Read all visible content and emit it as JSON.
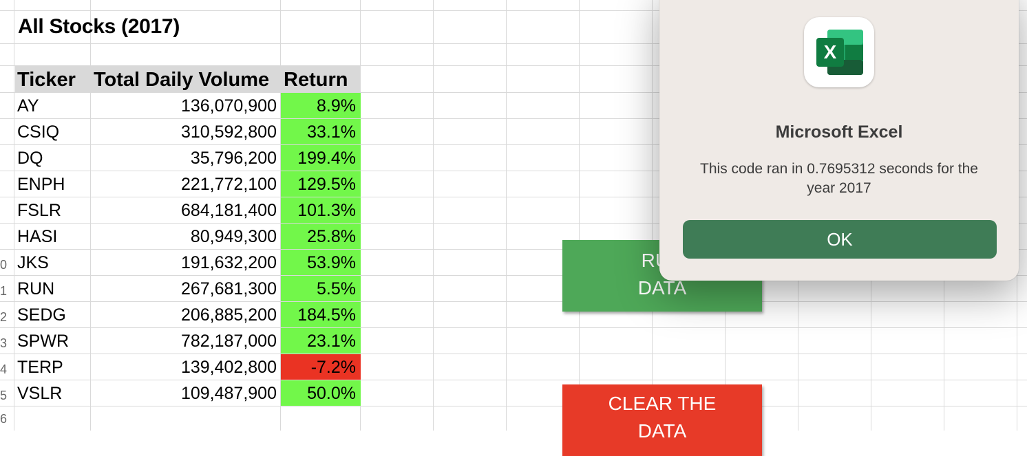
{
  "sheet": {
    "title": "All Stocks (2017)",
    "headers": {
      "ticker": "Ticker",
      "volume": "Total Daily Volume",
      "return": "Return"
    },
    "rows": [
      {
        "ticker": "AY",
        "volume": "136,070,900",
        "return": "8.9%",
        "status": "positive"
      },
      {
        "ticker": "CSIQ",
        "volume": "310,592,800",
        "return": "33.1%",
        "status": "positive"
      },
      {
        "ticker": "DQ",
        "volume": "35,796,200",
        "return": "199.4%",
        "status": "positive"
      },
      {
        "ticker": "ENPH",
        "volume": "221,772,100",
        "return": "129.5%",
        "status": "positive"
      },
      {
        "ticker": "FSLR",
        "volume": "684,181,400",
        "return": "101.3%",
        "status": "positive"
      },
      {
        "ticker": "HASI",
        "volume": "80,949,300",
        "return": "25.8%",
        "status": "positive"
      },
      {
        "ticker": "JKS",
        "volume": "191,632,200",
        "return": "53.9%",
        "status": "positive"
      },
      {
        "ticker": "RUN",
        "volume": "267,681,300",
        "return": "5.5%",
        "status": "positive"
      },
      {
        "ticker": "SEDG",
        "volume": "206,885,200",
        "return": "184.5%",
        "status": "positive"
      },
      {
        "ticker": "SPWR",
        "volume": "782,187,000",
        "return": "23.1%",
        "status": "positive"
      },
      {
        "ticker": "TERP",
        "volume": "139,402,800",
        "return": "-7.2%",
        "status": "negative"
      },
      {
        "ticker": "VSLR",
        "volume": "109,487,900",
        "return": "50.0%",
        "status": "positive"
      }
    ],
    "row_numbers": [
      "0",
      "1",
      "2",
      "3",
      "4",
      "5",
      "6"
    ]
  },
  "buttons": {
    "run_label_line1": "RUN",
    "run_label_line2": "DATA",
    "clear_label_line1": "CLEAR THE",
    "clear_label_line2": "DATA"
  },
  "dialog": {
    "app_icon": "excel-icon",
    "icon_letter": "X",
    "title": "Microsoft Excel",
    "message": "This code ran in 0.7695312 seconds for the year 2017",
    "ok_label": "OK"
  },
  "colors": {
    "positive": "#72f74a",
    "negative": "#ea3323",
    "header_bg": "#d9d9d9",
    "run_button": "#4ea858",
    "clear_button": "#e73a28",
    "ok_button": "#3f7c56"
  }
}
